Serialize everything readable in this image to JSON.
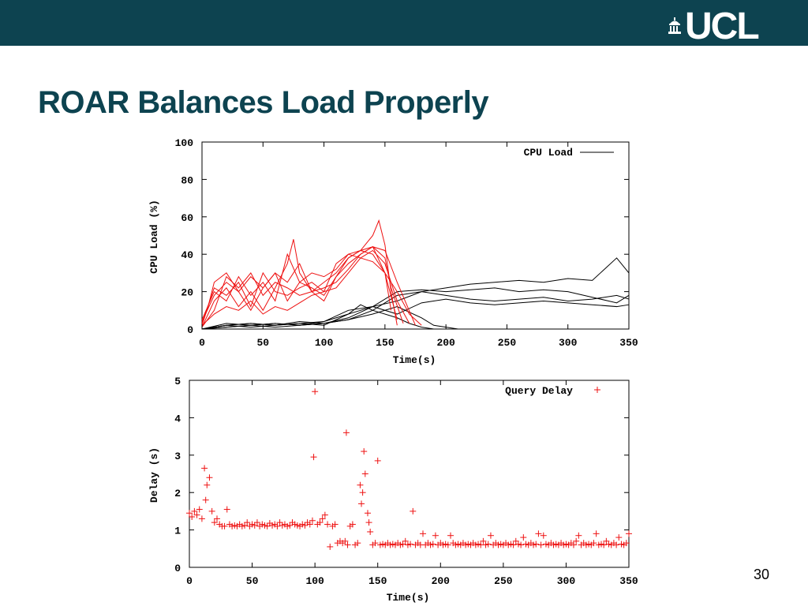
{
  "header": {
    "logo_text": "UCL",
    "bar_color": "#0d4350"
  },
  "slide": {
    "title": "ROAR Balances Load Properly",
    "page_number": "30"
  },
  "colors": {
    "red_series": "#ee1111",
    "black_series": "#000000"
  },
  "chart_data": [
    {
      "type": "line",
      "xlabel": "Time(s)",
      "ylabel": "CPU Load (%)",
      "xlim": [
        0,
        350
      ],
      "ylim": [
        0,
        100
      ],
      "xticks": [
        0,
        50,
        100,
        150,
        200,
        250,
        300,
        350
      ],
      "yticks": [
        0,
        20,
        40,
        60,
        80,
        100
      ],
      "legend": {
        "label": "CPU Load",
        "position": "top-right"
      },
      "series": [
        {
          "color": "red",
          "x": [
            0,
            5,
            10,
            20,
            30,
            40,
            50,
            60,
            70,
            80,
            90,
            100,
            110,
            120,
            130,
            140,
            150,
            160,
            170,
            180
          ],
          "y": [
            2,
            12,
            25,
            30,
            20,
            28,
            22,
            30,
            25,
            35,
            20,
            25,
            30,
            38,
            42,
            40,
            30,
            20,
            8,
            2
          ]
        },
        {
          "color": "red",
          "x": [
            0,
            10,
            20,
            30,
            40,
            50,
            60,
            70,
            80,
            90,
            100,
            110,
            120,
            130,
            140,
            150,
            155,
            165
          ],
          "y": [
            5,
            20,
            15,
            28,
            18,
            25,
            15,
            40,
            25,
            22,
            18,
            28,
            38,
            42,
            44,
            38,
            22,
            3
          ]
        },
        {
          "color": "red",
          "x": [
            0,
            10,
            20,
            30,
            40,
            50,
            60,
            70,
            75,
            80,
            90,
            100,
            110,
            120,
            130,
            140,
            150,
            160
          ],
          "y": [
            1,
            15,
            22,
            12,
            20,
            10,
            22,
            35,
            48,
            30,
            20,
            15,
            28,
            35,
            40,
            44,
            30,
            5
          ]
        },
        {
          "color": "red",
          "x": [
            0,
            10,
            20,
            30,
            40,
            50,
            60,
            70,
            80,
            90,
            100,
            110,
            120,
            130,
            140,
            145,
            150,
            155,
            160
          ],
          "y": [
            3,
            22,
            18,
            25,
            12,
            30,
            20,
            18,
            22,
            25,
            20,
            35,
            40,
            42,
            50,
            58,
            45,
            20,
            2
          ]
        },
        {
          "color": "red",
          "x": [
            0,
            10,
            20,
            30,
            40,
            50,
            60,
            70,
            80,
            90,
            100,
            110,
            120,
            130,
            140,
            150,
            160,
            170
          ],
          "y": [
            2,
            8,
            12,
            10,
            15,
            8,
            12,
            10,
            14,
            18,
            20,
            22,
            30,
            38,
            42,
            35,
            15,
            3
          ]
        },
        {
          "color": "red",
          "x": [
            0,
            10,
            20,
            30,
            40,
            50,
            60,
            70,
            80,
            90,
            100,
            110,
            120,
            130,
            140,
            150,
            155
          ],
          "y": [
            4,
            18,
            25,
            20,
            10,
            22,
            30,
            15,
            25,
            30,
            28,
            32,
            40,
            38,
            36,
            30,
            10
          ]
        },
        {
          "color": "red",
          "x": [
            0,
            10,
            20,
            30,
            40,
            50,
            60,
            70,
            80,
            90,
            100,
            110,
            120,
            130,
            140,
            150,
            160,
            175
          ],
          "y": [
            1,
            10,
            28,
            22,
            30,
            18,
            25,
            22,
            18,
            20,
            22,
            25,
            32,
            40,
            44,
            42,
            25,
            2
          ]
        }
      ],
      "series_black": [
        {
          "x": [
            0,
            20,
            40,
            60,
            80,
            100,
            120,
            140,
            160,
            180,
            200,
            220,
            240,
            260,
            280,
            300,
            320,
            340,
            350
          ],
          "y": [
            0,
            2,
            3,
            2,
            4,
            3,
            5,
            10,
            18,
            20,
            22,
            24,
            25,
            26,
            25,
            27,
            26,
            38,
            30
          ]
        },
        {
          "x": [
            0,
            20,
            40,
            60,
            80,
            100,
            120,
            140,
            160,
            180,
            200,
            220,
            240,
            260,
            280,
            300,
            320,
            340,
            350
          ],
          "y": [
            0,
            1,
            2,
            3,
            2,
            3,
            6,
            12,
            20,
            21,
            20,
            21,
            22,
            20,
            21,
            20,
            17,
            14,
            18
          ]
        },
        {
          "x": [
            0,
            20,
            40,
            60,
            80,
            100,
            120,
            140,
            160,
            180,
            200,
            220,
            240,
            260,
            280,
            300,
            320,
            340,
            350
          ],
          "y": [
            0,
            2,
            1,
            2,
            3,
            2,
            8,
            12,
            15,
            20,
            18,
            16,
            15,
            16,
            17,
            15,
            16,
            18,
            16
          ]
        },
        {
          "x": [
            0,
            20,
            40,
            60,
            80,
            100,
            120,
            140,
            160,
            180,
            200,
            220,
            240,
            260,
            280,
            300,
            320,
            340,
            350
          ],
          "y": [
            0,
            3,
            2,
            3,
            2,
            4,
            10,
            12,
            8,
            14,
            16,
            14,
            13,
            14,
            15,
            14,
            13,
            12,
            13
          ]
        },
        {
          "x": [
            0,
            20,
            40,
            60,
            80,
            100,
            120,
            130,
            140,
            160,
            170,
            180,
            190,
            200,
            220
          ],
          "y": [
            0,
            2,
            3,
            2,
            3,
            4,
            8,
            13,
            10,
            6,
            3,
            1,
            0,
            0,
            0
          ]
        },
        {
          "x": [
            0,
            20,
            40,
            60,
            80,
            100,
            120,
            140,
            160,
            180,
            190,
            200,
            210,
            220
          ],
          "y": [
            0,
            1,
            2,
            1,
            2,
            3,
            5,
            8,
            12,
            6,
            2,
            1,
            0,
            0
          ]
        }
      ]
    },
    {
      "type": "scatter",
      "xlabel": "Time(s)",
      "ylabel": "Delay (s)",
      "xlim": [
        0,
        350
      ],
      "ylim": [
        0,
        5
      ],
      "xticks": [
        0,
        50,
        100,
        150,
        200,
        250,
        300,
        350
      ],
      "yticks": [
        0,
        1,
        2,
        3,
        4,
        5
      ],
      "legend": {
        "label": "Query Delay",
        "position": "top-right"
      },
      "points": [
        [
          0,
          1.45
        ],
        [
          2,
          1.35
        ],
        [
          4,
          1.5
        ],
        [
          6,
          1.4
        ],
        [
          8,
          1.55
        ],
        [
          10,
          1.3
        ],
        [
          12,
          2.65
        ],
        [
          13,
          1.8
        ],
        [
          14,
          2.2
        ],
        [
          16,
          2.4
        ],
        [
          18,
          1.5
        ],
        [
          20,
          1.2
        ],
        [
          22,
          1.3
        ],
        [
          24,
          1.15
        ],
        [
          30,
          1.55
        ],
        [
          26,
          1.1
        ],
        [
          28,
          1.1
        ],
        [
          32,
          1.15
        ],
        [
          34,
          1.1
        ],
        [
          36,
          1.12
        ],
        [
          38,
          1.1
        ],
        [
          40,
          1.15
        ],
        [
          42,
          1.1
        ],
        [
          44,
          1.12
        ],
        [
          46,
          1.2
        ],
        [
          48,
          1.1
        ],
        [
          50,
          1.15
        ],
        [
          52,
          1.12
        ],
        [
          54,
          1.2
        ],
        [
          56,
          1.1
        ],
        [
          58,
          1.15
        ],
        [
          60,
          1.12
        ],
        [
          62,
          1.1
        ],
        [
          64,
          1.18
        ],
        [
          66,
          1.12
        ],
        [
          68,
          1.15
        ],
        [
          70,
          1.1
        ],
        [
          72,
          1.2
        ],
        [
          74,
          1.12
        ],
        [
          76,
          1.15
        ],
        [
          78,
          1.1
        ],
        [
          80,
          1.12
        ],
        [
          82,
          1.2
        ],
        [
          84,
          1.15
        ],
        [
          86,
          1.12
        ],
        [
          88,
          1.1
        ],
        [
          90,
          1.15
        ],
        [
          92,
          1.12
        ],
        [
          94,
          1.2
        ],
        [
          96,
          1.15
        ],
        [
          98,
          1.25
        ],
        [
          99,
          2.95
        ],
        [
          100,
          4.7
        ],
        [
          102,
          1.15
        ],
        [
          104,
          1.2
        ],
        [
          106,
          1.3
        ],
        [
          108,
          1.4
        ],
        [
          110,
          1.15
        ],
        [
          112,
          0.55
        ],
        [
          114,
          1.1
        ],
        [
          116,
          1.15
        ],
        [
          118,
          0.65
        ],
        [
          120,
          0.7
        ],
        [
          122,
          0.65
        ],
        [
          124,
          0.7
        ],
        [
          125,
          3.6
        ],
        [
          126,
          0.6
        ],
        [
          128,
          1.1
        ],
        [
          130,
          1.15
        ],
        [
          132,
          0.6
        ],
        [
          134,
          0.65
        ],
        [
          136,
          2.2
        ],
        [
          137,
          1.7
        ],
        [
          138,
          2.0
        ],
        [
          139,
          3.1
        ],
        [
          140,
          2.5
        ],
        [
          142,
          1.45
        ],
        [
          143,
          1.2
        ],
        [
          144,
          0.95
        ],
        [
          146,
          0.6
        ],
        [
          148,
          0.65
        ],
        [
          150,
          2.85
        ],
        [
          152,
          0.6
        ],
        [
          154,
          0.62
        ],
        [
          156,
          0.6
        ],
        [
          158,
          0.65
        ],
        [
          160,
          0.6
        ],
        [
          162,
          0.62
        ],
        [
          164,
          0.6
        ],
        [
          166,
          0.65
        ],
        [
          168,
          0.6
        ],
        [
          170,
          0.62
        ],
        [
          172,
          0.7
        ],
        [
          174,
          0.6
        ],
        [
          176,
          0.62
        ],
        [
          178,
          1.5
        ],
        [
          180,
          0.6
        ],
        [
          182,
          0.65
        ],
        [
          184,
          0.6
        ],
        [
          186,
          0.9
        ],
        [
          188,
          0.6
        ],
        [
          190,
          0.65
        ],
        [
          192,
          0.6
        ],
        [
          194,
          0.62
        ],
        [
          196,
          0.85
        ],
        [
          198,
          0.6
        ],
        [
          200,
          0.65
        ],
        [
          202,
          0.6
        ],
        [
          204,
          0.62
        ],
        [
          206,
          0.6
        ],
        [
          208,
          0.85
        ],
        [
          210,
          0.65
        ],
        [
          212,
          0.6
        ],
        [
          214,
          0.62
        ],
        [
          216,
          0.6
        ],
        [
          218,
          0.65
        ],
        [
          220,
          0.6
        ],
        [
          222,
          0.62
        ],
        [
          224,
          0.6
        ],
        [
          226,
          0.65
        ],
        [
          228,
          0.6
        ],
        [
          230,
          0.62
        ],
        [
          232,
          0.6
        ],
        [
          234,
          0.7
        ],
        [
          236,
          0.6
        ],
        [
          238,
          0.62
        ],
        [
          240,
          0.85
        ],
        [
          242,
          0.6
        ],
        [
          244,
          0.65
        ],
        [
          246,
          0.6
        ],
        [
          248,
          0.62
        ],
        [
          250,
          0.6
        ],
        [
          252,
          0.65
        ],
        [
          254,
          0.6
        ],
        [
          256,
          0.62
        ],
        [
          258,
          0.6
        ],
        [
          260,
          0.7
        ],
        [
          262,
          0.62
        ],
        [
          264,
          0.6
        ],
        [
          266,
          0.8
        ],
        [
          268,
          0.62
        ],
        [
          270,
          0.6
        ],
        [
          272,
          0.65
        ],
        [
          274,
          0.6
        ],
        [
          276,
          0.62
        ],
        [
          278,
          0.9
        ],
        [
          280,
          0.6
        ],
        [
          282,
          0.85
        ],
        [
          284,
          0.62
        ],
        [
          286,
          0.6
        ],
        [
          288,
          0.65
        ],
        [
          290,
          0.6
        ],
        [
          292,
          0.62
        ],
        [
          294,
          0.6
        ],
        [
          296,
          0.65
        ],
        [
          298,
          0.6
        ],
        [
          300,
          0.62
        ],
        [
          302,
          0.6
        ],
        [
          304,
          0.65
        ],
        [
          306,
          0.6
        ],
        [
          308,
          0.7
        ],
        [
          310,
          0.85
        ],
        [
          312,
          0.6
        ],
        [
          314,
          0.65
        ],
        [
          316,
          0.6
        ],
        [
          318,
          0.62
        ],
        [
          320,
          0.6
        ],
        [
          322,
          0.65
        ],
        [
          324,
          0.9
        ],
        [
          326,
          0.6
        ],
        [
          328,
          0.62
        ],
        [
          330,
          0.6
        ],
        [
          332,
          0.7
        ],
        [
          334,
          0.62
        ],
        [
          336,
          0.6
        ],
        [
          338,
          0.65
        ],
        [
          340,
          0.6
        ],
        [
          342,
          0.8
        ],
        [
          344,
          0.62
        ],
        [
          346,
          0.6
        ],
        [
          348,
          0.65
        ],
        [
          350,
          0.9
        ]
      ]
    }
  ]
}
